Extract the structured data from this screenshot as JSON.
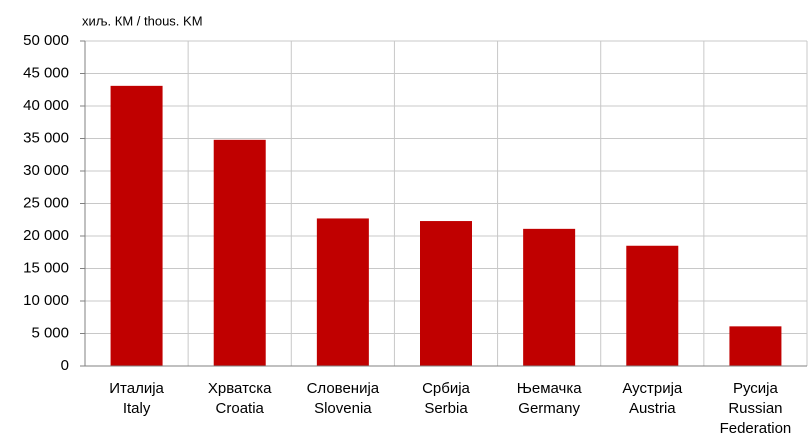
{
  "chart_data": {
    "type": "bar",
    "y_axis_label": "хиљ. КМ / thous. KM",
    "categories": [
      [
        "Италија",
        "Italy"
      ],
      [
        "Хрватска",
        "Croatia"
      ],
      [
        "Словенија",
        "Slovenia"
      ],
      [
        "Србија",
        "Serbia"
      ],
      [
        "Њемачка",
        "Germany"
      ],
      [
        "Аустрија",
        "Austria"
      ],
      [
        "Русија",
        "Russian",
        "Federation"
      ]
    ],
    "values": [
      43100,
      34800,
      22700,
      22300,
      21100,
      18500,
      6100
    ],
    "color": "#c00000",
    "ylim": [
      0,
      50000
    ],
    "yticks": [
      0,
      {
        "value": 5000,
        "label": "5 000"
      },
      {
        "value": 10000,
        "label": "10 000"
      },
      {
        "value": 15000,
        "label": "15 000"
      },
      {
        "value": 20000,
        "label": "20 000"
      },
      {
        "value": 25000,
        "label": "25 000"
      },
      {
        "value": 30000,
        "label": "30 000"
      },
      {
        "value": 35000,
        "label": "35 000"
      },
      {
        "value": 40000,
        "label": "40 000"
      },
      {
        "value": 45000,
        "label": "45 000"
      },
      {
        "value": 50000,
        "label": "50 000"
      }
    ],
    "grid": true
  }
}
